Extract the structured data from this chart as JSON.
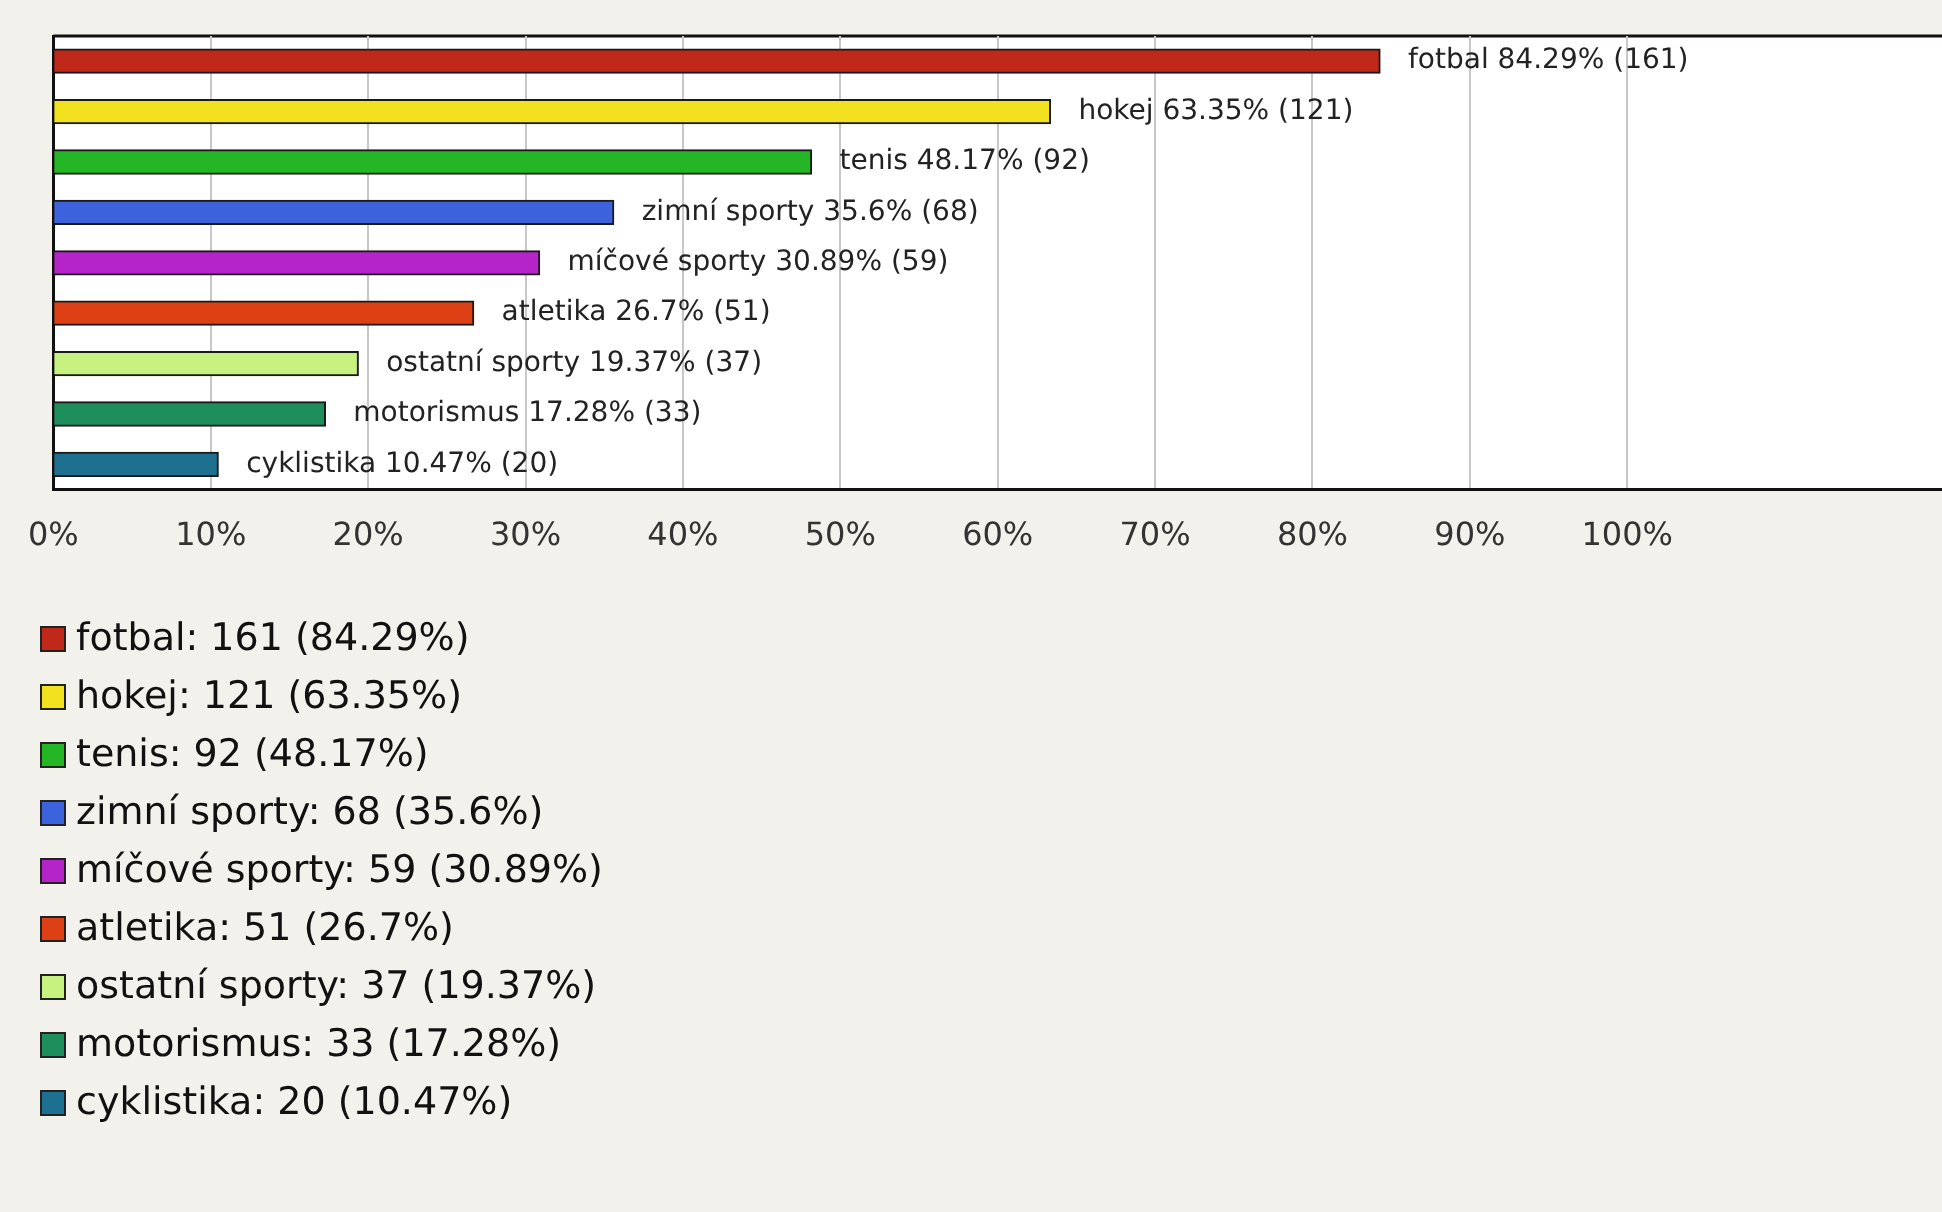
{
  "chart_data": {
    "type": "bar",
    "orientation": "horizontal",
    "tick_labels": "x",
    "categories": [
      null,
      null,
      null,
      null,
      null,
      null,
      null,
      null,
      null
    ],
    "series": [
      {
        "name": "fotbal: 161 (84.29%)",
        "color": "#c0281a",
        "values": [
          84.29,
          null,
          null,
          null,
          null,
          null,
          null,
          null,
          null
        ],
        "value_labels": [
          "fotbal 84.29% (161)",
          null,
          null,
          null,
          null,
          null,
          null,
          null,
          null
        ]
      },
      {
        "name": "hokej: 121 (63.35%)",
        "color": "#f2e11e",
        "values": [
          null,
          63.35,
          null,
          null,
          null,
          null,
          null,
          null,
          null
        ],
        "value_labels": [
          null,
          "hokej 63.35% (121)",
          null,
          null,
          null,
          null,
          null,
          null,
          null
        ]
      },
      {
        "name": "tenis: 92 (48.17%)",
        "color": "#24b624",
        "values": [
          null,
          null,
          48.17,
          null,
          null,
          null,
          null,
          null,
          null
        ],
        "value_labels": [
          null,
          null,
          "tenis 48.17% (92)",
          null,
          null,
          null,
          null,
          null,
          null
        ]
      },
      {
        "name": "zimní sporty: 68 (35.6%)",
        "color": "#3c62dc",
        "values": [
          null,
          null,
          null,
          35.6,
          null,
          null,
          null,
          null,
          null
        ],
        "value_labels": [
          null,
          null,
          null,
          "zimní sporty 35.6% (68)",
          null,
          null,
          null,
          null,
          null
        ]
      },
      {
        "name": "míčové sporty: 59 (30.89%)",
        "color": "#b424c8",
        "values": [
          null,
          null,
          null,
          null,
          30.89,
          null,
          null,
          null,
          null
        ],
        "value_labels": [
          null,
          null,
          null,
          null,
          "míčové sporty 30.89% (59)",
          null,
          null,
          null,
          null
        ]
      },
      {
        "name": "atletika: 51 (26.7%)",
        "color": "#dc4014",
        "values": [
          null,
          null,
          null,
          null,
          null,
          26.7,
          null,
          null,
          null
        ],
        "value_labels": [
          null,
          null,
          null,
          null,
          null,
          "atletika 26.7% (51)",
          null,
          null,
          null
        ]
      },
      {
        "name": "ostatní sporty: 37 (19.37%)",
        "color": "#c8f280",
        "values": [
          null,
          null,
          null,
          null,
          null,
          null,
          19.37,
          null,
          null
        ],
        "value_labels": [
          null,
          null,
          null,
          null,
          null,
          null,
          "ostatní sporty 19.37% (37)",
          null,
          null
        ]
      },
      {
        "name": "motorismus: 33 (17.28%)",
        "color": "#1e8e5c",
        "values": [
          null,
          null,
          null,
          null,
          null,
          null,
          null,
          17.28,
          null
        ],
        "value_labels": [
          null,
          null,
          null,
          null,
          null,
          null,
          null,
          "motorismus 17.28% (33)",
          null
        ]
      },
      {
        "name": "cyklistika: 20 (10.47%)",
        "color": "#1e7090",
        "values": [
          null,
          null,
          null,
          null,
          null,
          null,
          null,
          null,
          10.47
        ],
        "value_labels": [
          null,
          null,
          null,
          null,
          null,
          null,
          null,
          null,
          "cyklistika 10.47% (20)"
        ]
      }
    ],
    "xlim": [
      0,
      120
    ],
    "xticks": [
      {
        "value": 0,
        "label": "0%"
      },
      {
        "value": 10,
        "label": "10%"
      },
      {
        "value": 20,
        "label": "20%"
      },
      {
        "value": 30,
        "label": "30%"
      },
      {
        "value": 40,
        "label": "40%"
      },
      {
        "value": 50,
        "label": "50%"
      },
      {
        "value": 60,
        "label": "60%"
      },
      {
        "value": 70,
        "label": "70%"
      },
      {
        "value": 80,
        "label": "80%"
      },
      {
        "value": 90,
        "label": "90%"
      },
      {
        "value": 100,
        "label": "100%"
      }
    ],
    "grid": "x",
    "legend": "bottom"
  }
}
